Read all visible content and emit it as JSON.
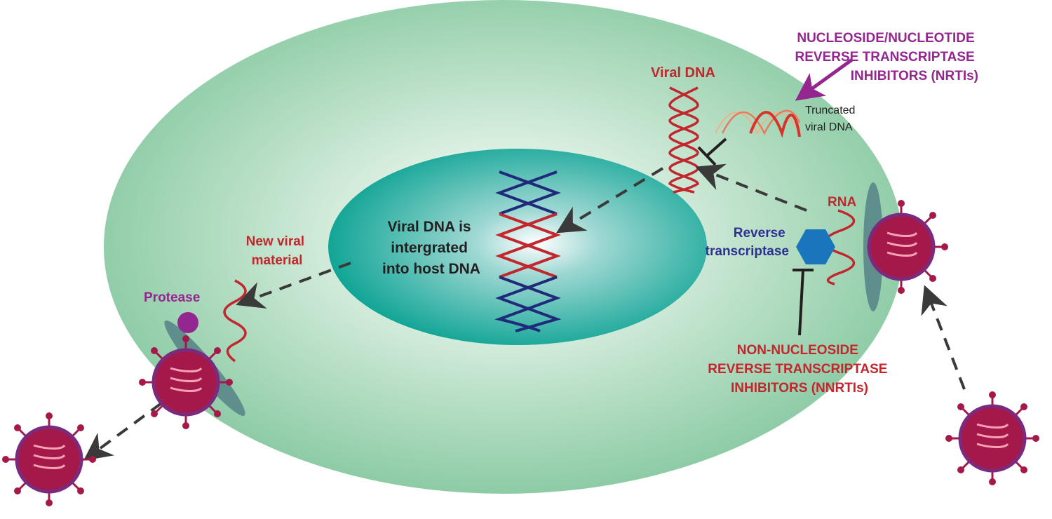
{
  "labels": {
    "nrti": [
      "NUCLEOSIDE/NUCLEOTIDE",
      "REVERSE TRANSCRIPTASE",
      "INHIBITORS (NRTIs)"
    ],
    "viral_dna": "Viral DNA",
    "truncated": [
      "Truncated",
      "viral DNA"
    ],
    "rna": "RNA",
    "reverse_transcriptase": [
      "Reverse",
      "transcriptase"
    ],
    "nucleus_text": [
      "Viral DNA is",
      "intergrated",
      "into host DNA"
    ],
    "new_viral_material": [
      "New viral",
      "material"
    ],
    "protease": "Protease",
    "nnrti": [
      "NON-NUCLEOSIDE",
      "REVERSE TRANSCRIPTASE",
      "INHIBITORS (NNRTIs)"
    ]
  },
  "colors": {
    "cell": "#8ccba4",
    "nucleus": "#1aa89c",
    "viral_red": "#c1272d",
    "host_blue": "#1f2a7a",
    "virus_body": "#a5194a",
    "virus_edge": "#7b2a7e",
    "enzyme_blue": "#1b75bc",
    "protease_purple": "#93278f",
    "arrow": "#3a3a3a"
  }
}
